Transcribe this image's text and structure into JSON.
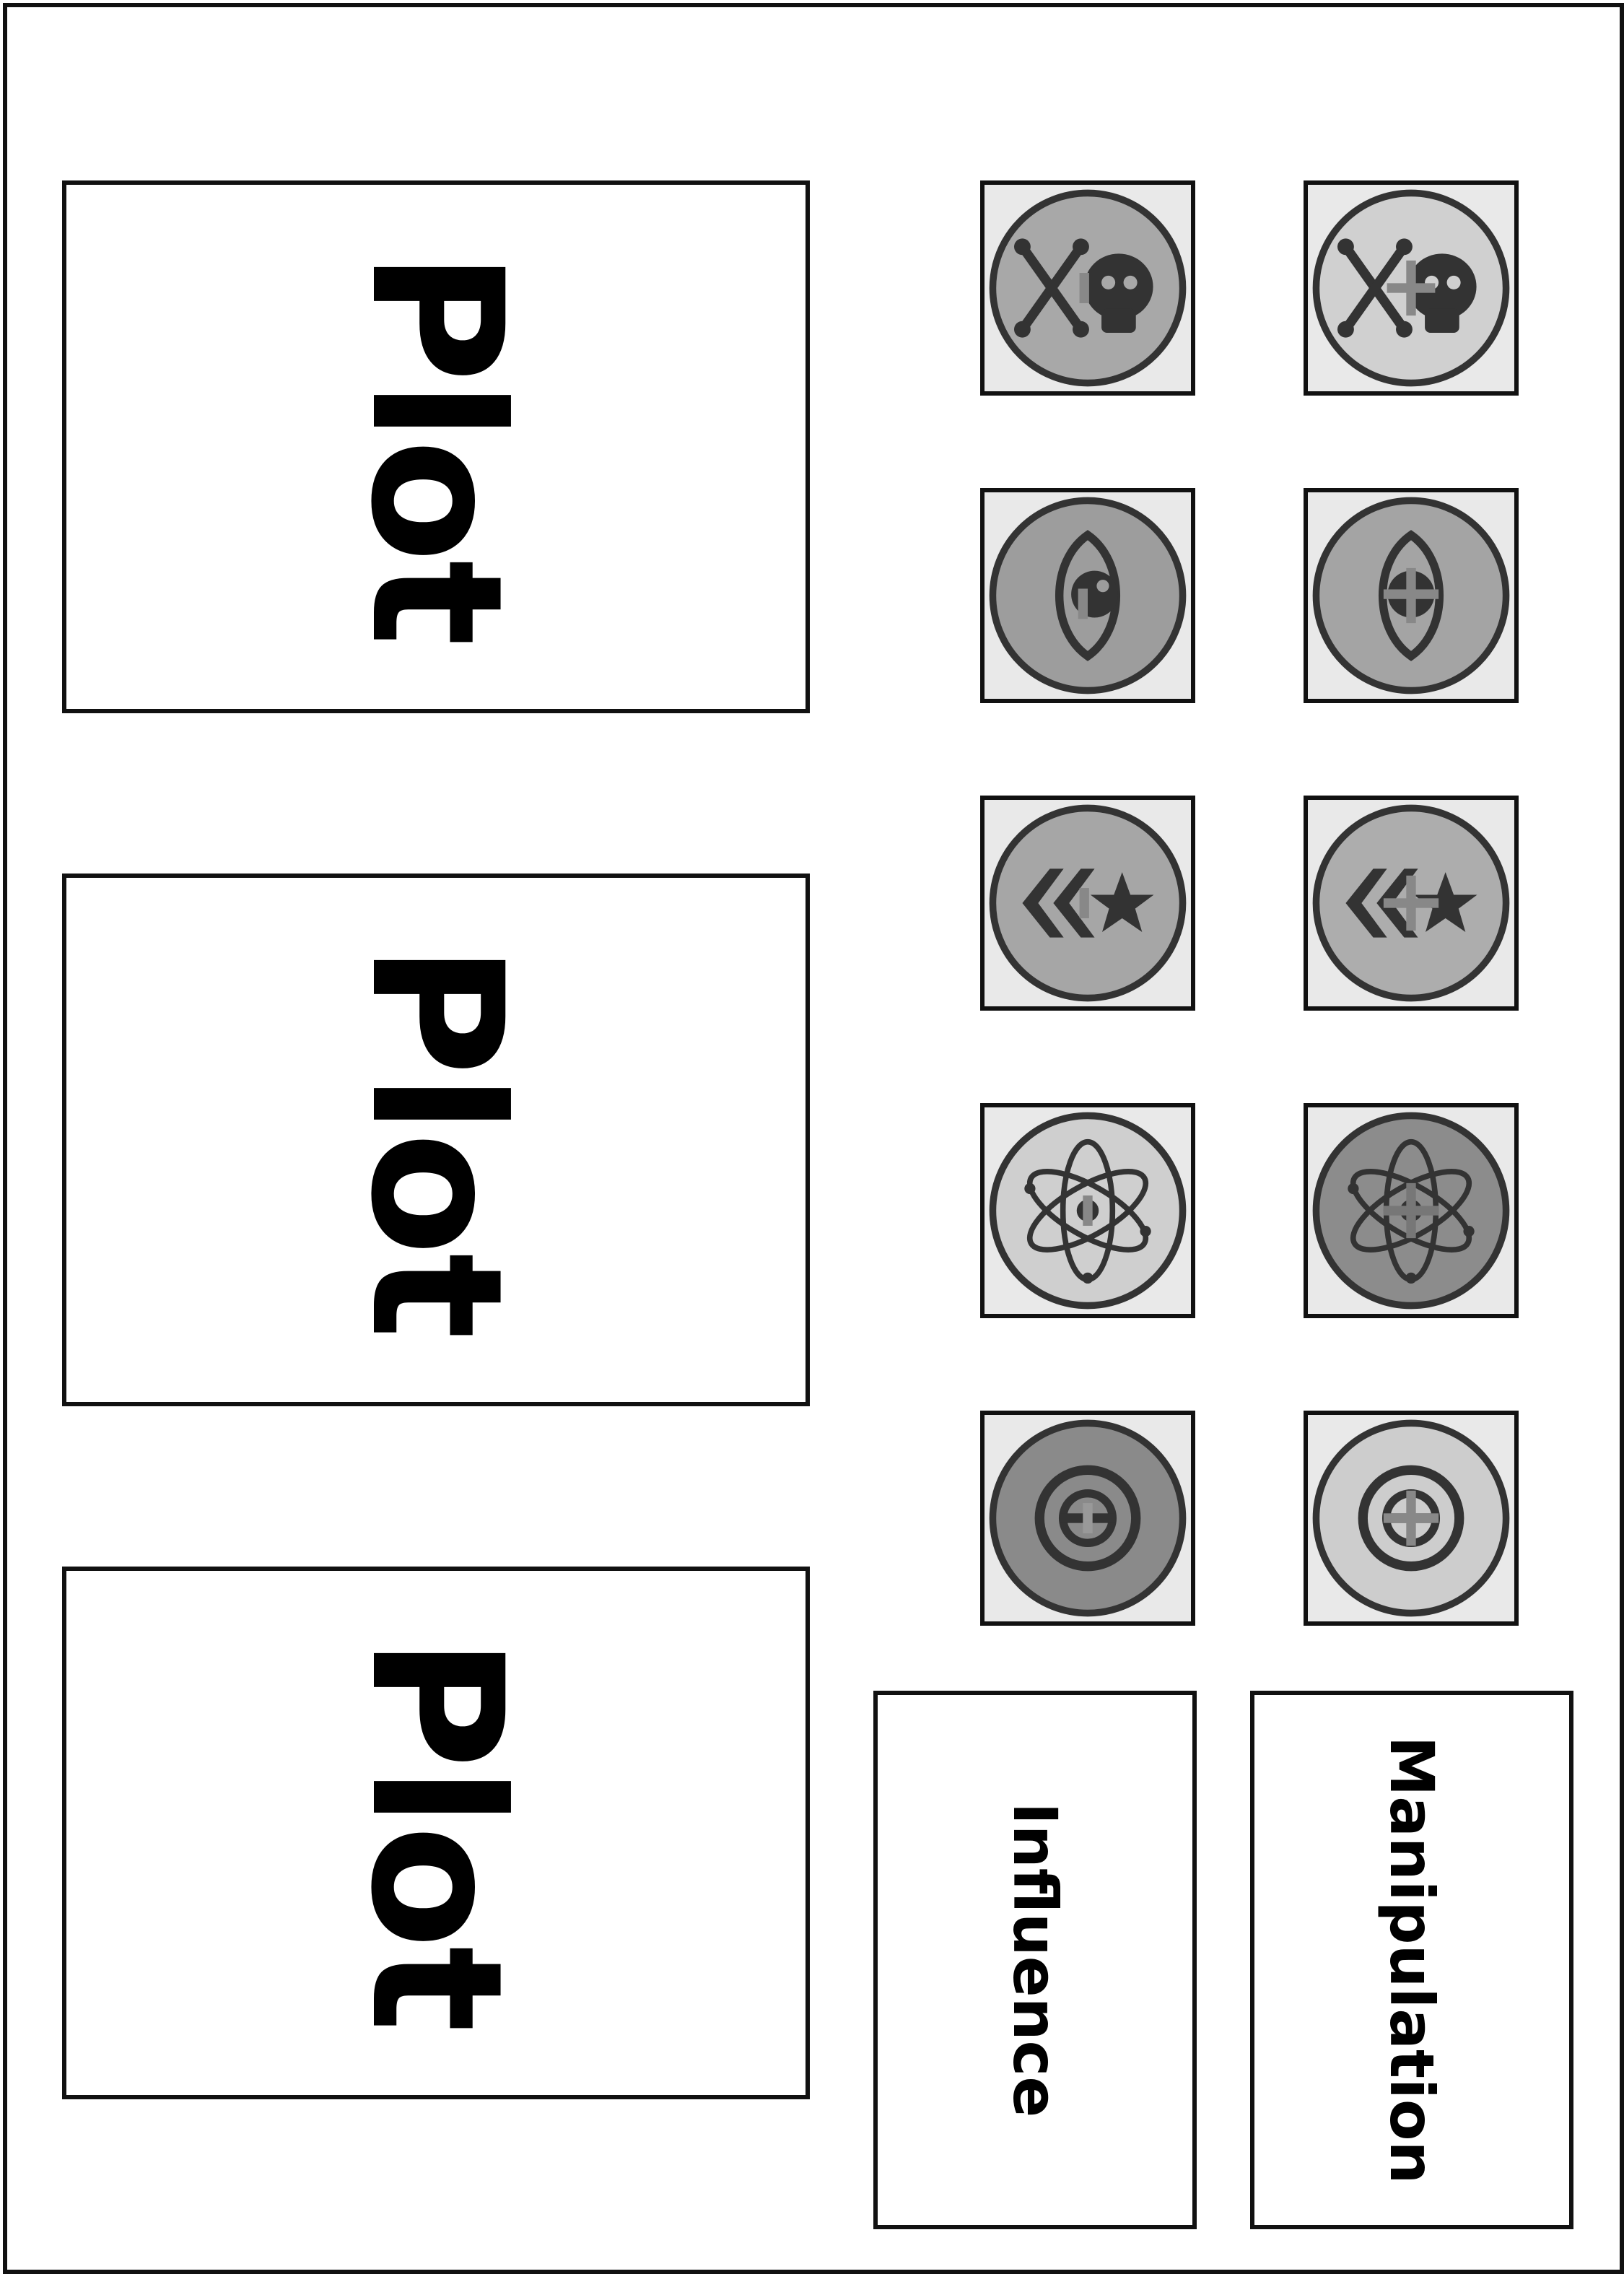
{
  "plots": [
    {
      "label": "Plot"
    },
    {
      "label": "Plot"
    },
    {
      "label": "Plot"
    }
  ],
  "tokens": [
    {
      "icon": "skull-crossbones-icon",
      "mark": "ring-dash",
      "fill": "#a8a8a8"
    },
    {
      "icon": "skull-crossbones-icon",
      "mark": "plus",
      "fill": "#d0d0d0"
    },
    {
      "icon": "eye-icon",
      "mark": "ring-dash",
      "fill": "#9d9d9d"
    },
    {
      "icon": "eye-icon",
      "mark": "plus",
      "fill": "#a4a4a4"
    },
    {
      "icon": "chevron-star-icon",
      "mark": "ring-dash",
      "fill": "#a6a6a6"
    },
    {
      "icon": "chevron-star-icon",
      "mark": "plus",
      "fill": "#adadad"
    },
    {
      "icon": "atom-icon",
      "mark": "ring-dash",
      "fill": "#cfcfcf"
    },
    {
      "icon": "atom-icon",
      "mark": "plus",
      "fill": "#8c8c8c"
    },
    {
      "icon": "target-coin-icon",
      "mark": "ring-dash",
      "fill": "#8a8a8a"
    },
    {
      "icon": "target-coin-icon",
      "mark": "plus",
      "fill": "#cdcdcd"
    }
  ],
  "labels": {
    "influence": "Influence",
    "manipulation": "Manipulation"
  }
}
